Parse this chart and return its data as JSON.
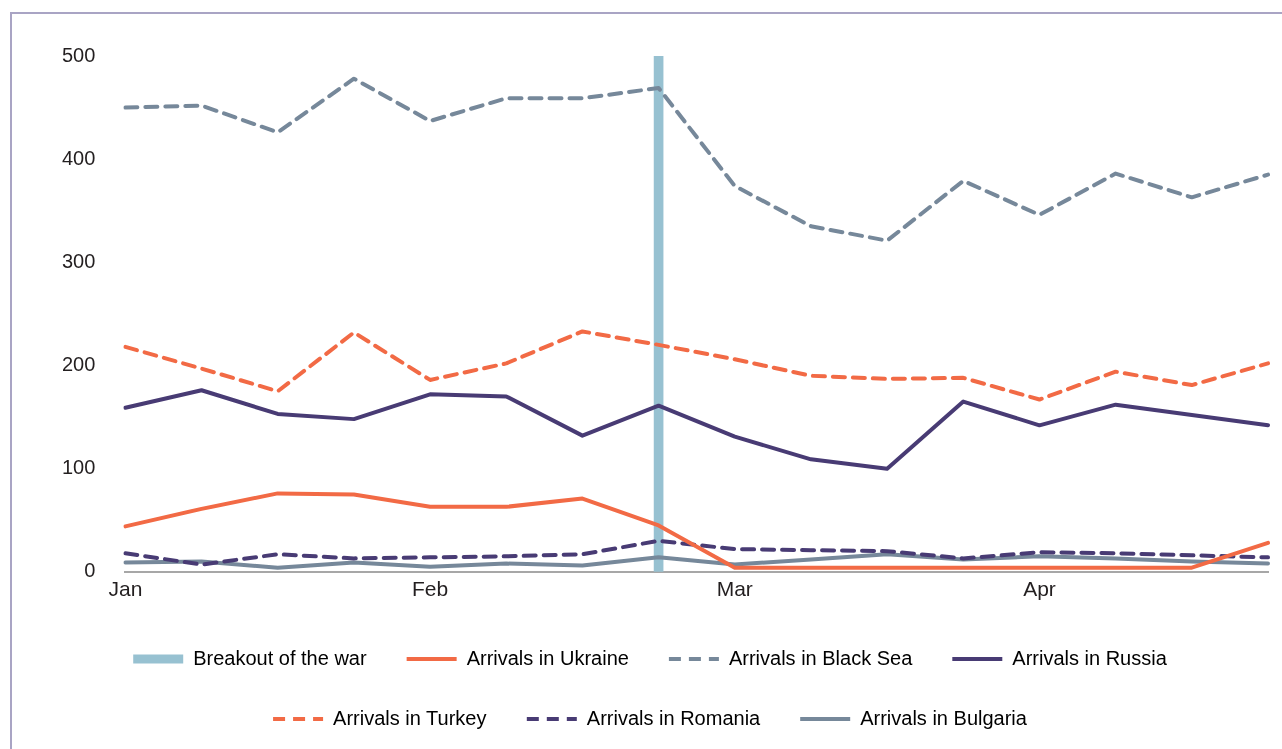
{
  "chart_data": {
    "type": "line",
    "categories": [
      "Jan",
      null,
      null,
      null,
      "Feb",
      null,
      null,
      null,
      "Mar",
      null,
      null,
      null,
      "Apr",
      null,
      null,
      null
    ],
    "ylim": [
      0,
      500
    ],
    "yticks": [
      0,
      100,
      200,
      300,
      400,
      500
    ],
    "grid": false,
    "legend": "bottom",
    "marker": "none",
    "series": [
      {
        "name": "Breakout of the war",
        "type": "bar",
        "color": "#97c1d1",
        "values": [
          null,
          null,
          null,
          null,
          null,
          null,
          null,
          500,
          null,
          null,
          null,
          null,
          null,
          null,
          null,
          null
        ]
      },
      {
        "name": "Arrivals in Ukraine",
        "color": "#f26a45",
        "line_style": "solid",
        "values": [
          44,
          61,
          76,
          75,
          63,
          63,
          71,
          45,
          4,
          4,
          4,
          4,
          4,
          4,
          4,
          28
        ]
      },
      {
        "name": "Arrivals in Black Sea",
        "color": "#76889a",
        "line_style": "dashed",
        "values": [
          450,
          452,
          426,
          478,
          437,
          459,
          459,
          469,
          374,
          335,
          321,
          379,
          346,
          386,
          363,
          385
        ]
      },
      {
        "name": "Arrivals in Russia",
        "color": "#483b74",
        "line_style": "solid",
        "values": [
          159,
          176,
          153,
          148,
          172,
          170,
          132,
          161,
          131,
          109,
          100,
          165,
          142,
          162,
          152,
          142
        ]
      },
      {
        "name": "Arrivals in Turkey",
        "color": "#f26a45",
        "line_style": "dashed",
        "values": [
          218,
          197,
          175,
          232,
          186,
          202,
          233,
          220,
          206,
          190,
          187,
          188,
          167,
          194,
          181,
          202
        ]
      },
      {
        "name": "Arrivals in Romania",
        "color": "#483b74",
        "line_style": "dashed",
        "values": [
          18,
          7,
          17,
          13,
          14,
          15,
          17,
          30,
          22,
          21,
          20,
          13,
          19,
          18,
          16,
          14
        ]
      },
      {
        "name": "Arrivals in Bulgaria",
        "color": "#76889a",
        "line_style": "solid",
        "values": [
          9,
          10,
          4,
          9,
          5,
          8,
          6,
          14,
          7,
          12,
          17,
          12,
          15,
          13,
          10,
          8
        ]
      }
    ]
  }
}
